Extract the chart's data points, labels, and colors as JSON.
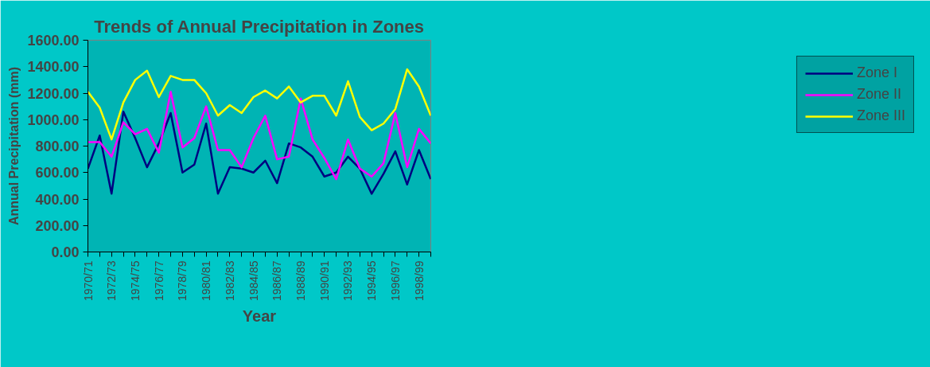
{
  "chart_data": {
    "type": "line",
    "title": "Trends of Annual Precipitation in Zones",
    "xlabel": "Year",
    "ylabel": "Annual Precipitation (mm)",
    "categories": [
      "1970/71",
      null,
      "1972/73",
      null,
      "1974/75",
      null,
      "1976/77",
      null,
      "1978/79",
      null,
      "1980/81",
      null,
      "1982/83",
      null,
      "1984/85",
      null,
      "1986/87",
      null,
      "1988/89",
      null,
      "1990/91",
      null,
      "1992/93",
      null,
      "1994/95",
      null,
      "1996/97",
      null,
      "1998/99",
      null
    ],
    "series": [
      {
        "name": "Zone I",
        "color": "#000080",
        "values": [
          630,
          880,
          440,
          1060,
          860,
          640,
          820,
          1050,
          600,
          660,
          970,
          440,
          640,
          630,
          600,
          690,
          520,
          820,
          790,
          720,
          570,
          600,
          720,
          630,
          440,
          590,
          760,
          510,
          770,
          550
        ]
      },
      {
        "name": "Zone II",
        "color": "#ff00ff",
        "values": [
          830,
          830,
          720,
          980,
          890,
          930,
          750,
          1210,
          790,
          860,
          1100,
          770,
          770,
          640,
          860,
          1030,
          700,
          720,
          1160,
          850,
          710,
          550,
          850,
          630,
          570,
          670,
          1050,
          640,
          930,
          820
        ]
      },
      {
        "name": "Zone III",
        "color": "#ffff00",
        "values": [
          1210,
          1090,
          850,
          1130,
          1300,
          1370,
          1170,
          1330,
          1300,
          1300,
          1200,
          1030,
          1110,
          1050,
          1170,
          1220,
          1160,
          1250,
          1130,
          1180,
          1180,
          1030,
          1290,
          1020,
          920,
          970,
          1080,
          1380,
          1250,
          1030
        ]
      }
    ],
    "ylim": [
      0,
      1600
    ],
    "yticks": [
      {
        "value": 0,
        "label": "0.00"
      },
      {
        "value": 200,
        "label": "200.00"
      },
      {
        "value": 400,
        "label": "400.00"
      },
      {
        "value": 600,
        "label": "600.00"
      },
      {
        "value": 800,
        "label": "800.00"
      },
      {
        "value": 1000,
        "label": "1000.00"
      },
      {
        "value": 1200,
        "label": "1200.00"
      },
      {
        "value": 1400,
        "label": "1400.00"
      },
      {
        "value": 1600,
        "label": "1600.00"
      }
    ],
    "grid": false,
    "legend": "right",
    "marker": "none",
    "line_style": "solid"
  }
}
